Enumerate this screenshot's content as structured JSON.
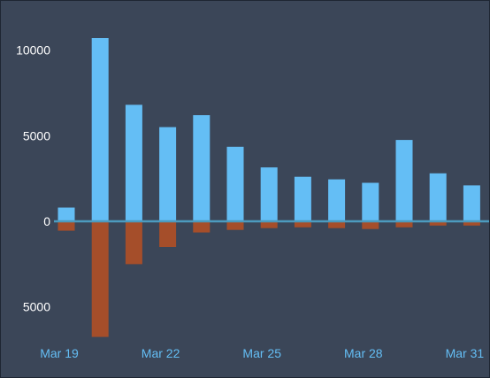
{
  "theme": {
    "background": "#3b4658",
    "series_a_color": "#64bef5",
    "series_b_color": "#a54e2a",
    "baseline_color": "#4c9bbf",
    "x_tick_color": "#64bef5",
    "y_tick_color": "#ffffff"
  },
  "chart_data": {
    "type": "bar",
    "title": "",
    "xlabel": "",
    "ylabel": "",
    "categories": [
      "Mar 19",
      "Mar 20",
      "Mar 21",
      "Mar 22",
      "Mar 23",
      "Mar 24",
      "Mar 25",
      "Mar 26",
      "Mar 27",
      "Mar 28",
      "Mar 29",
      "Mar 30",
      "Mar 31"
    ],
    "x_tick_labels": [
      "Mar 19",
      "Mar 22",
      "Mar 25",
      "Mar 28",
      "Mar 31"
    ],
    "y_tick_values": [
      10000,
      5000,
      0,
      -5000
    ],
    "y_tick_labels": [
      "10000",
      "5000",
      "0",
      "5000"
    ],
    "ylim": [
      -6800,
      11000
    ],
    "grid": false,
    "legend": "none",
    "series": [
      {
        "values": [
          800,
          10700,
          6800,
          5500,
          6200,
          4350,
          3150,
          2600,
          2450,
          2250,
          4750,
          2800,
          2100
        ]
      },
      {
        "values": [
          -550,
          -6750,
          -2500,
          -1500,
          -650,
          -500,
          -400,
          -350,
          -400,
          -450,
          -350,
          -250,
          -250
        ]
      }
    ]
  }
}
